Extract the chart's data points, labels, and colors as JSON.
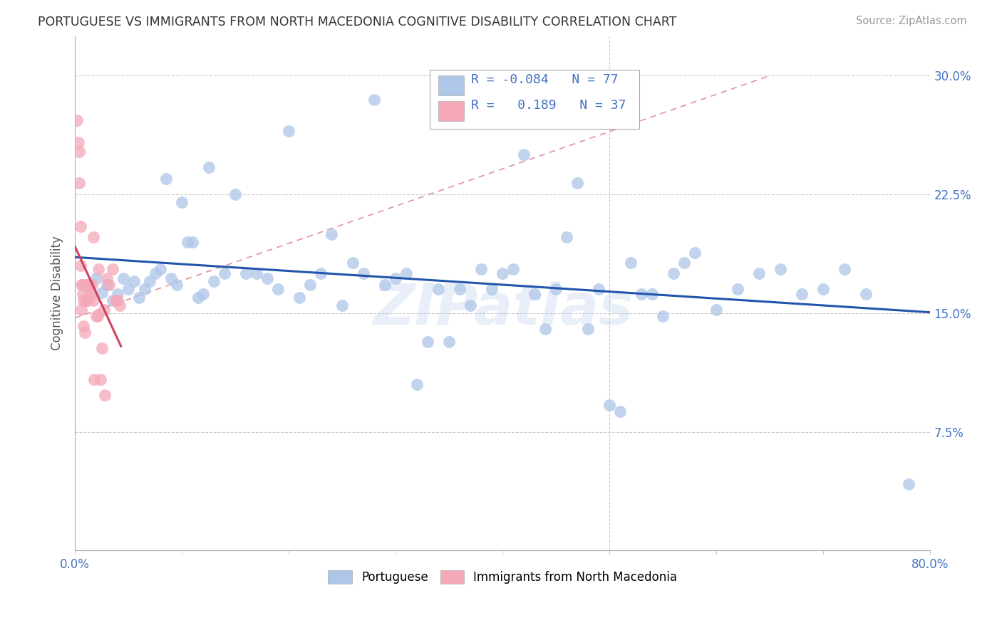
{
  "title": "PORTUGUESE VS IMMIGRANTS FROM NORTH MACEDONIA COGNITIVE DISABILITY CORRELATION CHART",
  "source": "Source: ZipAtlas.com",
  "ylabel": "Cognitive Disability",
  "xlim": [
    0.0,
    0.8
  ],
  "ylim": [
    0.0,
    0.325
  ],
  "xticks": [
    0.0,
    0.1,
    0.2,
    0.3,
    0.4,
    0.5,
    0.6,
    0.7,
    0.8
  ],
  "xticklabels": [
    "0.0%",
    "",
    "",
    "",
    "",
    "",
    "",
    "",
    "80.0%"
  ],
  "yticks": [
    0.0,
    0.075,
    0.15,
    0.225,
    0.3
  ],
  "yticklabels": [
    "",
    "7.5%",
    "15.0%",
    "22.5%",
    "30.0%"
  ],
  "grid_color": "#cccccc",
  "background_color": "#ffffff",
  "title_color": "#333333",
  "axis_color": "#4472c4",
  "legend_R1": "-0.084",
  "legend_N1": "77",
  "legend_R2": "  0.189",
  "legend_N2": "37",
  "blue_color": "#aec6e8",
  "pink_color": "#f4a8b8",
  "blue_line_color": "#2255aa",
  "pink_line_color": "#d04060",
  "dashed_line_color": "#e090a0",
  "watermark": "ZIPatlas",
  "portuguese_x": [
    0.02,
    0.025,
    0.03,
    0.035,
    0.04,
    0.045,
    0.05,
    0.055,
    0.06,
    0.065,
    0.07,
    0.075,
    0.08,
    0.085,
    0.09,
    0.095,
    0.1,
    0.105,
    0.11,
    0.115,
    0.12,
    0.125,
    0.13,
    0.14,
    0.15,
    0.16,
    0.17,
    0.18,
    0.19,
    0.2,
    0.21,
    0.22,
    0.23,
    0.24,
    0.25,
    0.26,
    0.27,
    0.28,
    0.29,
    0.3,
    0.31,
    0.32,
    0.33,
    0.34,
    0.35,
    0.36,
    0.37,
    0.38,
    0.39,
    0.4,
    0.41,
    0.42,
    0.43,
    0.44,
    0.45,
    0.46,
    0.47,
    0.48,
    0.49,
    0.5,
    0.51,
    0.52,
    0.53,
    0.54,
    0.55,
    0.56,
    0.57,
    0.58,
    0.6,
    0.62,
    0.64,
    0.66,
    0.68,
    0.7,
    0.72,
    0.74,
    0.78
  ],
  "portuguese_y": [
    0.172,
    0.163,
    0.168,
    0.158,
    0.162,
    0.172,
    0.165,
    0.17,
    0.16,
    0.165,
    0.17,
    0.175,
    0.178,
    0.235,
    0.172,
    0.168,
    0.22,
    0.195,
    0.195,
    0.16,
    0.162,
    0.242,
    0.17,
    0.175,
    0.225,
    0.175,
    0.175,
    0.172,
    0.165,
    0.265,
    0.16,
    0.168,
    0.175,
    0.2,
    0.155,
    0.182,
    0.175,
    0.285,
    0.168,
    0.172,
    0.175,
    0.105,
    0.132,
    0.165,
    0.132,
    0.165,
    0.155,
    0.178,
    0.165,
    0.175,
    0.178,
    0.25,
    0.162,
    0.14,
    0.165,
    0.198,
    0.232,
    0.14,
    0.165,
    0.092,
    0.088,
    0.182,
    0.162,
    0.162,
    0.148,
    0.175,
    0.182,
    0.188,
    0.152,
    0.165,
    0.175,
    0.178,
    0.162,
    0.165,
    0.178,
    0.162,
    0.042
  ],
  "macedonia_x": [
    0.002,
    0.003,
    0.004,
    0.004,
    0.005,
    0.005,
    0.006,
    0.006,
    0.007,
    0.007,
    0.008,
    0.008,
    0.009,
    0.009,
    0.01,
    0.011,
    0.012,
    0.013,
    0.014,
    0.015,
    0.016,
    0.017,
    0.017,
    0.018,
    0.02,
    0.021,
    0.022,
    0.024,
    0.025,
    0.027,
    0.028,
    0.03,
    0.032,
    0.035,
    0.038,
    0.04,
    0.042
  ],
  "macedonia_y": [
    0.272,
    0.258,
    0.252,
    0.232,
    0.205,
    0.18,
    0.168,
    0.152,
    0.168,
    0.162,
    0.158,
    0.142,
    0.168,
    0.138,
    0.158,
    0.168,
    0.158,
    0.168,
    0.162,
    0.162,
    0.168,
    0.158,
    0.198,
    0.108,
    0.148,
    0.148,
    0.178,
    0.108,
    0.128,
    0.152,
    0.098,
    0.172,
    0.168,
    0.178,
    0.158,
    0.158,
    0.155
  ]
}
